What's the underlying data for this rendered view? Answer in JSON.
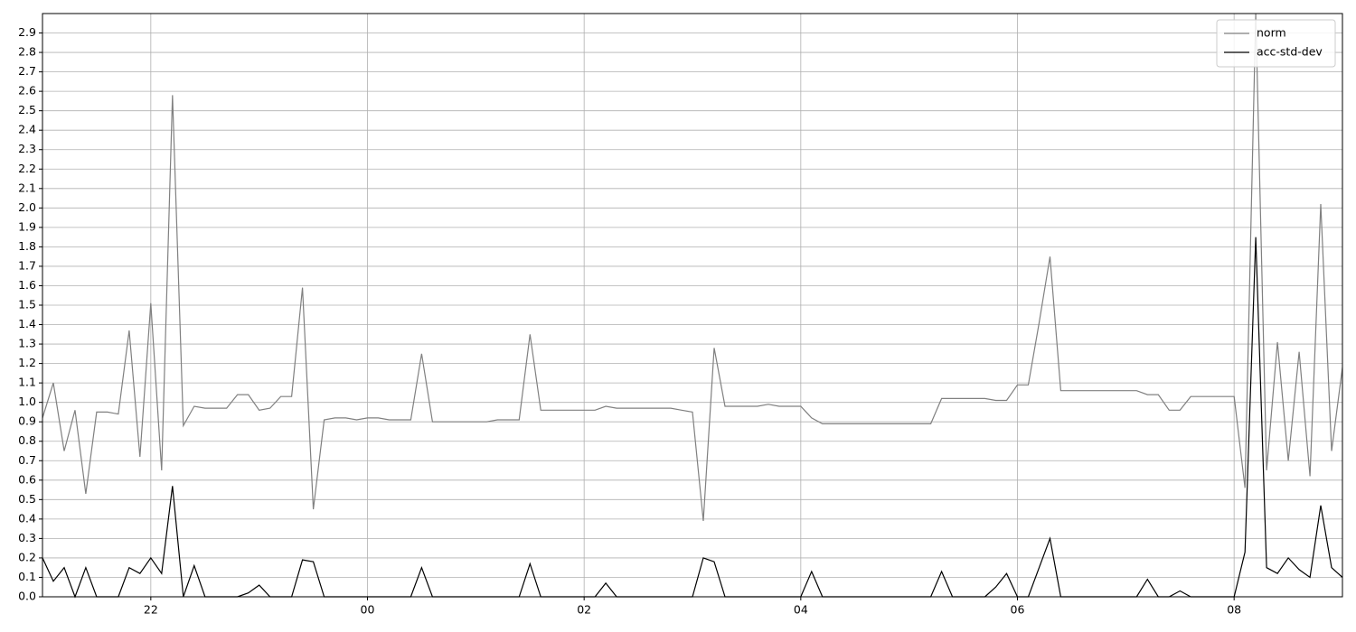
{
  "chart_data": {
    "type": "line",
    "x": [
      21.0,
      21.1,
      21.2,
      21.3,
      21.4,
      21.5,
      21.6,
      21.7,
      21.8,
      21.9,
      22.0,
      22.1,
      22.2,
      22.3,
      22.4,
      22.5,
      22.6,
      22.7,
      22.8,
      22.9,
      23.0,
      23.1,
      23.2,
      23.3,
      23.4,
      23.5,
      23.6,
      23.7,
      23.8,
      23.9,
      24.0,
      24.1,
      24.2,
      24.3,
      24.4,
      24.5,
      24.6,
      24.7,
      24.8,
      24.9,
      25.0,
      25.1,
      25.2,
      25.3,
      25.4,
      25.5,
      25.6,
      25.7,
      25.8,
      25.9,
      26.0,
      26.1,
      26.2,
      26.3,
      26.4,
      26.5,
      26.6,
      26.7,
      26.8,
      26.9,
      27.0,
      27.1,
      27.2,
      27.3,
      27.4,
      27.5,
      27.6,
      27.7,
      27.8,
      27.9,
      28.0,
      28.1,
      28.2,
      28.3,
      28.4,
      28.5,
      28.6,
      28.7,
      28.8,
      28.9,
      29.0,
      29.1,
      29.2,
      29.3,
      29.4,
      29.5,
      29.6,
      29.7,
      29.8,
      29.9,
      30.0,
      30.1,
      30.2,
      30.3,
      30.4,
      30.5,
      30.6,
      30.7,
      30.8,
      30.9,
      31.0,
      31.1,
      31.2,
      31.3,
      31.4,
      31.5,
      31.6,
      31.7,
      31.8,
      31.9,
      32.0,
      32.1,
      32.2,
      32.3,
      32.4,
      32.5,
      32.6,
      32.7,
      32.8,
      32.9,
      33.0
    ],
    "series": [
      {
        "name": "norm",
        "color": "#808080",
        "values": [
          0.92,
          1.1,
          0.75,
          0.96,
          0.53,
          0.95,
          0.95,
          0.94,
          1.37,
          0.72,
          1.51,
          0.65,
          2.58,
          0.88,
          0.98,
          0.97,
          0.97,
          0.97,
          1.04,
          1.04,
          0.96,
          0.97,
          1.03,
          1.03,
          1.59,
          0.45,
          0.91,
          0.92,
          0.92,
          0.91,
          0.92,
          0.92,
          0.91,
          0.91,
          0.91,
          1.25,
          0.9,
          0.9,
          0.9,
          0.9,
          0.9,
          0.9,
          0.91,
          0.91,
          0.91,
          1.35,
          0.96,
          0.96,
          0.96,
          0.96,
          0.96,
          0.96,
          0.98,
          0.97,
          0.97,
          0.97,
          0.97,
          0.97,
          0.97,
          0.96,
          0.95,
          0.39,
          1.28,
          0.98,
          0.98,
          0.98,
          0.98,
          0.99,
          0.98,
          0.98,
          0.98,
          0.92,
          0.89,
          0.89,
          0.89,
          0.89,
          0.89,
          0.89,
          0.89,
          0.89,
          0.89,
          0.89,
          0.89,
          1.02,
          1.02,
          1.02,
          1.02,
          1.02,
          1.01,
          1.01,
          1.09,
          1.09,
          1.41,
          1.75,
          1.06,
          1.06,
          1.06,
          1.06,
          1.06,
          1.06,
          1.06,
          1.06,
          1.04,
          1.04,
          0.96,
          0.96,
          1.03,
          1.03,
          1.03,
          1.03,
          1.03,
          0.56,
          3.0,
          0.65,
          1.31,
          0.7,
          1.26,
          0.62,
          2.02,
          0.75,
          1.18
        ]
      },
      {
        "name": "acc-std-dev",
        "color": "#000000",
        "values": [
          0.2,
          0.08,
          0.15,
          0,
          0.15,
          0,
          0,
          0,
          0.15,
          0.12,
          0.2,
          0.12,
          0.57,
          0,
          0.16,
          0,
          0,
          0,
          0,
          0.02,
          0.06,
          0,
          0,
          0,
          0.19,
          0.18,
          0,
          0,
          0,
          0,
          0,
          0,
          0,
          0,
          0,
          0.15,
          0,
          0,
          0,
          0,
          0,
          0,
          0,
          0,
          0,
          0.17,
          0,
          0,
          0,
          0,
          0,
          0,
          0.07,
          0,
          0,
          0,
          0,
          0,
          0,
          0,
          0,
          0.2,
          0.18,
          0,
          0,
          0,
          0,
          0,
          0,
          0,
          0,
          0.13,
          0,
          0,
          0,
          0,
          0,
          0,
          0,
          0,
          0,
          0,
          0,
          0.13,
          0,
          0,
          0,
          0,
          0.05,
          0.12,
          0,
          0,
          0.15,
          0.3,
          0,
          0,
          0,
          0,
          0,
          0,
          0,
          0,
          0.09,
          0,
          0,
          0.03,
          0,
          0,
          0,
          0,
          0,
          0.23,
          1.85,
          0.15,
          0.12,
          0.2,
          0.14,
          0.1,
          0.47,
          0.15,
          0.1
        ]
      }
    ],
    "xlim": [
      21,
      33
    ],
    "xticks": [
      22,
      {
        "value": 24,
        "label": "00"
      },
      {
        "value": 26,
        "label": "02"
      },
      {
        "value": 28,
        "label": "04"
      },
      {
        "value": 30,
        "label": "06"
      },
      {
        "value": 32,
        "label": "08"
      }
    ],
    "ylim": [
      0,
      3.0
    ],
    "yticks": [
      {
        "value": 0,
        "label": "0.0"
      },
      0.1,
      0.2,
      0.3,
      0.4,
      0.5,
      0.6,
      0.7,
      0.8,
      0.9,
      {
        "value": 1,
        "label": "1.0"
      },
      1.1,
      1.2,
      1.3,
      1.4,
      1.5,
      1.6,
      1.7,
      1.8,
      1.9,
      {
        "value": 2,
        "label": "2.0"
      },
      2.1,
      2.2,
      2.3,
      2.4,
      2.5,
      2.6,
      2.7,
      2.8,
      2.9
    ],
    "grid": true,
    "legend": "upper right"
  }
}
